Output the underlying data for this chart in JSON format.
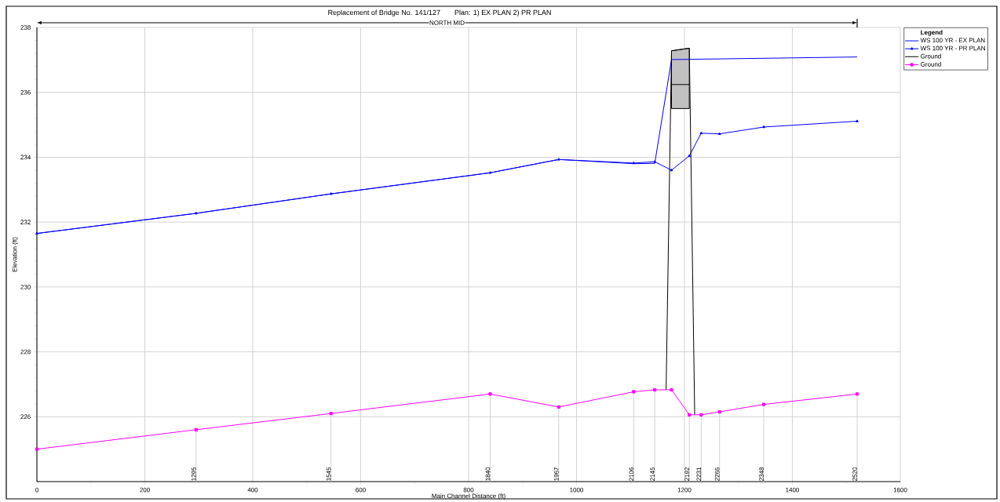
{
  "chart_data": {
    "type": "line",
    "title": "Replacement of Bridge No. 141/127",
    "subtitle": "Plan:    1) EX PLAN    2) PR PLAN",
    "xlabel": "Main Channel Distance (ft)",
    "ylabel": "Elevation (ft)",
    "legend_title": "Legend",
    "xlim": [
      0,
      1600
    ],
    "xticks": [
      0,
      200,
      400,
      600,
      800,
      1000,
      1200,
      1400,
      1600
    ],
    "ylim": [
      224,
      238
    ],
    "yticks": [
      226,
      228,
      230,
      232,
      234,
      236,
      238
    ],
    "grid": true,
    "legend": "top right",
    "series": [
      {
        "name": "WS  100 YR - EX PLAN",
        "color": "#0000ff",
        "x": [
          0,
          295,
          545,
          840,
          967,
          1106,
          1145,
          1176,
          1520
        ],
        "values": [
          231.65,
          232.27,
          232.87,
          233.52,
          233.93,
          233.8,
          233.81,
          237.01,
          237.09
        ]
      },
      {
        "name": "WS  100 YR - PR PLAN",
        "color": "#0000ff",
        "marker": "triangle",
        "x": [
          0,
          295,
          545,
          840,
          967,
          1106,
          1145,
          1176,
          1209,
          1231,
          1265,
          1347,
          1520
        ],
        "values": [
          231.65,
          232.27,
          232.87,
          233.52,
          233.93,
          233.82,
          233.86,
          233.6,
          234.04,
          234.74,
          234.72,
          234.93,
          235.11
        ]
      },
      {
        "name": "Ground",
        "color": "#000000",
        "marker": "none",
        "x": [
          1166,
          1176,
          1209,
          1219
        ],
        "values": [
          226.83,
          237.28,
          237.36,
          226.06
        ]
      },
      {
        "name": "Ground",
        "color": "#ff00ff",
        "marker": "square",
        "x": [
          0,
          295,
          545,
          840,
          967,
          1106,
          1145,
          1176,
          1209,
          1231,
          1265,
          1347,
          1520
        ],
        "values": [
          225.0,
          225.6,
          226.1,
          226.7,
          226.3,
          226.77,
          226.83,
          226.83,
          226.06,
          226.06,
          226.15,
          226.38,
          226.7
        ]
      },
      {
        "color": "#000000",
        "x": [
          1176,
          1209
        ],
        "values": [
          236.24,
          236.24
        ],
        "lower": [
          235.5,
          235.5
        ],
        "upper": [
          237.28,
          237.36
        ]
      }
    ],
    "annotations": [
      "NORTH MID",
      {
        "text": "1295",
        "x": 295,
        "y": 225.6
      },
      {
        "text": "1545",
        "x": 545,
        "y": 226.1
      },
      {
        "text": "1840",
        "x": 840,
        "y": 226.7
      },
      {
        "text": "1967",
        "x": 967,
        "y": 226.3
      },
      {
        "text": "2106",
        "x": 1106,
        "y": 226.77
      },
      {
        "text": "2145",
        "x": 1145,
        "y": 226.83
      },
      {
        "text": "2192",
        "x": 1209,
        "y": 226.06
      },
      {
        "text": "2231",
        "x": 1231,
        "y": 226.06
      },
      {
        "text": "2265",
        "x": 1265,
        "y": 226.15
      },
      {
        "text": "2348",
        "x": 1347,
        "y": 226.38
      },
      {
        "text": "2520",
        "x": 1520,
        "y": 226.7
      }
    ]
  }
}
